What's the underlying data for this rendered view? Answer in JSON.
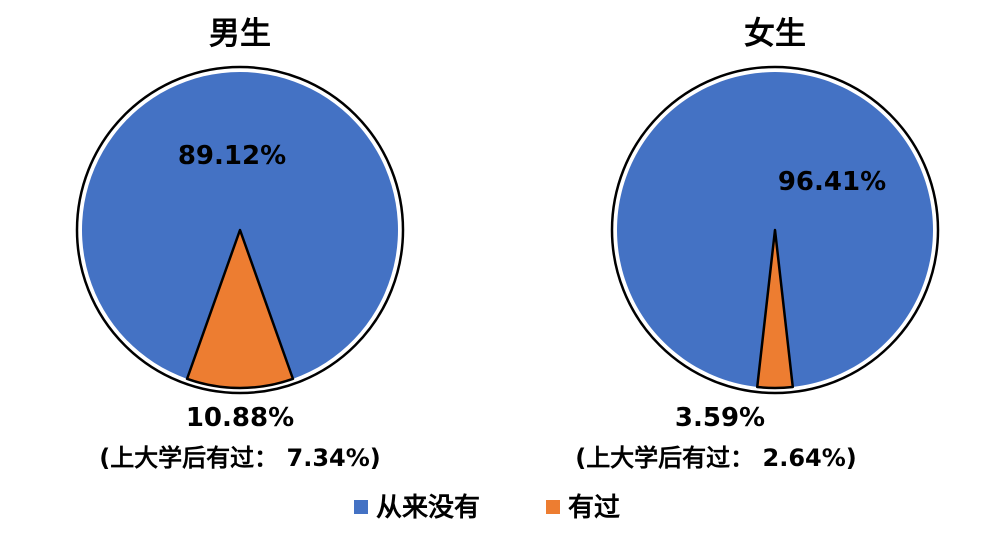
{
  "chart_data": [
    {
      "type": "pie",
      "title": "男生",
      "categories": [
        "从来没有",
        "有过"
      ],
      "values": [
        89.12,
        10.88
      ],
      "labels": [
        "89.12%",
        "10.88%"
      ],
      "note": "(上大学后有过：  7.34%)"
    },
    {
      "type": "pie",
      "title": "女生",
      "categories": [
        "从来没有",
        "有过"
      ],
      "values": [
        96.41,
        3.59
      ],
      "labels": [
        "96.41%",
        "3.59%"
      ],
      "note": "(上大学后有过：  2.64%)"
    }
  ],
  "legend": {
    "placement": "bottom",
    "items": [
      {
        "label": "从来没有",
        "color": "#4472C4"
      },
      {
        "label": "有过",
        "color": "#ED7D31"
      }
    ]
  },
  "colors": {
    "never": "#4472C4",
    "ever": "#ED7D31",
    "outline": "#000000"
  }
}
